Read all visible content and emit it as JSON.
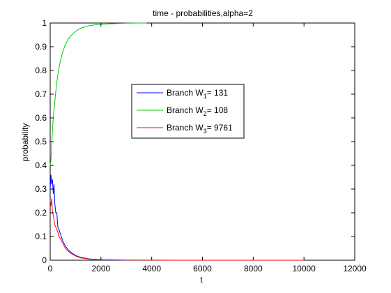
{
  "chart_data": {
    "type": "line",
    "title": "time - probabilities,alpha=2",
    "xlabel": "t",
    "ylabel": "probability",
    "xlim": [
      0,
      12000
    ],
    "ylim": [
      0,
      1
    ],
    "xticks": [
      0,
      2000,
      4000,
      6000,
      8000,
      10000,
      12000
    ],
    "yticks": [
      0,
      0.1,
      0.2,
      0.3,
      0.4,
      0.5,
      0.6,
      0.7,
      0.8,
      0.9,
      1
    ],
    "xtick_labels": [
      "0",
      "2000",
      "4000",
      "6000",
      "8000",
      "10000",
      "12000"
    ],
    "ytick_labels": [
      "0",
      "0.1",
      "0.2",
      "0.3",
      "0.4",
      "0.5",
      "0.6",
      "0.7",
      "0.8",
      "0.9",
      "1"
    ],
    "grid": false,
    "legend_position": "center",
    "series": [
      {
        "name": "Branch W1= 131",
        "legend": {
          "prefix": "Branch W",
          "sub": "1",
          "suffix": "= 131"
        },
        "color": "#0000ff",
        "x": [
          0,
          30,
          60,
          90,
          120,
          150,
          180,
          220,
          260,
          300,
          350,
          400,
          500,
          600,
          700,
          800,
          1000,
          1200,
          1500,
          1800,
          2200,
          2700,
          3000
        ],
        "y": [
          0.3,
          0.36,
          0.32,
          0.34,
          0.28,
          0.32,
          0.24,
          0.2,
          0.2,
          0.14,
          0.13,
          0.11,
          0.08,
          0.06,
          0.045,
          0.035,
          0.02,
          0.012,
          0.006,
          0.003,
          0.001,
          0.0005,
          0
        ]
      },
      {
        "name": "Branch W2= 108",
        "legend": {
          "prefix": "Branch W",
          "sub": "2",
          "suffix": "= 108"
        },
        "color": "#00cc00",
        "x": [
          0,
          30,
          60,
          90,
          120,
          160,
          200,
          250,
          300,
          350,
          400,
          500,
          600,
          700,
          800,
          1000,
          1200,
          1500,
          1800,
          2200,
          2600,
          3000,
          3500,
          3800
        ],
        "y": [
          0.4,
          0.42,
          0.48,
          0.55,
          0.6,
          0.64,
          0.69,
          0.74,
          0.78,
          0.81,
          0.84,
          0.88,
          0.91,
          0.93,
          0.945,
          0.965,
          0.978,
          0.988,
          0.993,
          0.996,
          0.998,
          0.999,
          1.0,
          1.0
        ]
      },
      {
        "name": "Branch W3= 9761",
        "legend": {
          "prefix": "Branch W",
          "sub": "3",
          "suffix": "= 9761"
        },
        "color": "#ff0000",
        "x": [
          0,
          30,
          60,
          90,
          120,
          150,
          180,
          220,
          260,
          300,
          350,
          400,
          500,
          600,
          700,
          800,
          1000,
          1200,
          1500,
          2000,
          3000,
          5000,
          8000,
          10000
        ],
        "y": [
          0.25,
          0.23,
          0.26,
          0.2,
          0.19,
          0.17,
          0.15,
          0.14,
          0.13,
          0.12,
          0.1,
          0.09,
          0.07,
          0.05,
          0.04,
          0.03,
          0.018,
          0.01,
          0.005,
          0.002,
          0.0005,
          0,
          0,
          0
        ]
      }
    ]
  }
}
